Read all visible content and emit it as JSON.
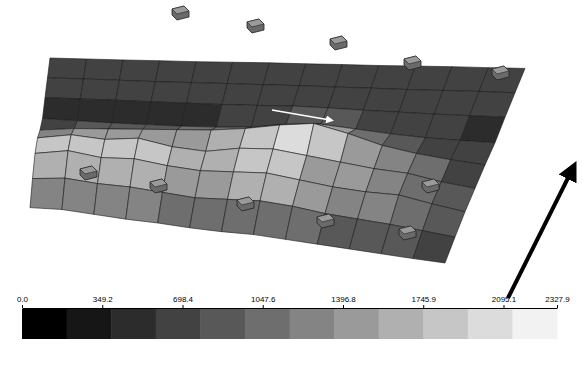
{
  "chart_data": {
    "type": "surface",
    "z": [
      [
        620,
        610,
        600,
        600,
        590,
        600,
        610,
        600,
        600,
        590,
        600,
        610,
        600,
        600
      ],
      [
        600,
        600,
        590,
        580,
        590,
        600,
        600,
        610,
        600,
        600,
        590,
        600,
        610,
        600
      ],
      [
        580,
        590,
        600,
        600,
        610,
        620,
        650,
        700,
        680,
        640,
        620,
        600,
        600,
        590
      ],
      [
        500,
        480,
        470,
        480,
        500,
        550,
        650,
        900,
        1000,
        850,
        700,
        600,
        560,
        540
      ],
      [
        900,
        1100,
        1200,
        1300,
        1400,
        1500,
        1700,
        2000,
        2200,
        1800,
        1300,
        1000,
        800,
        650
      ],
      [
        1500,
        1800,
        1700,
        1900,
        1600,
        1500,
        1800,
        1900,
        1700,
        1500,
        1300,
        1200,
        900,
        700
      ],
      [
        1700,
        2000,
        1800,
        1900,
        1700,
        1600,
        1700,
        1800,
        1600,
        1400,
        1300,
        1300,
        1000,
        750
      ],
      [
        1400,
        1600,
        1500,
        1500,
        1400,
        1300,
        1400,
        1500,
        1400,
        1200,
        1100,
        1000,
        850,
        700
      ],
      [
        900,
        1000,
        950,
        900,
        900,
        850,
        850,
        900,
        850,
        800,
        750,
        700,
        650,
        620
      ]
    ],
    "colorbar": {
      "range": [
        0,
        2327.9
      ],
      "ticks": [
        {
          "value": 0,
          "label": "0.0"
        },
        349.2,
        698.4,
        1047.6,
        1396.8,
        1745.9,
        2095.1,
        2327.9
      ]
    }
  }
}
